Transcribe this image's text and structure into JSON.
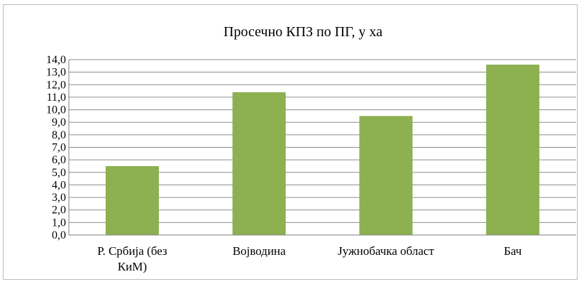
{
  "chart_data": {
    "type": "bar",
    "title": "Просечно КПЗ по ПГ,  у ха",
    "categories": [
      "Р. Србија (без КиМ)",
      "Војводина",
      "Јужнобачка област",
      "Бач"
    ],
    "category_label_lines": [
      [
        "Р. Србија (без",
        "КиМ)"
      ],
      [
        "Војводина"
      ],
      [
        "Јужнобачка област"
      ],
      [
        "Бач"
      ]
    ],
    "values": [
      5.5,
      11.4,
      9.5,
      13.6
    ],
    "ylim": [
      0,
      14
    ],
    "yticks": [
      "0,0",
      "1,0",
      "2,0",
      "3,0",
      "4,0",
      "5,0",
      "6,0",
      "7,0",
      "8,0",
      "9,0",
      "10,0",
      "11,0",
      "12,0",
      "13,0",
      "14,0"
    ],
    "xlabel": "",
    "ylabel": "",
    "grid": true,
    "bar_color": "#8db050"
  }
}
